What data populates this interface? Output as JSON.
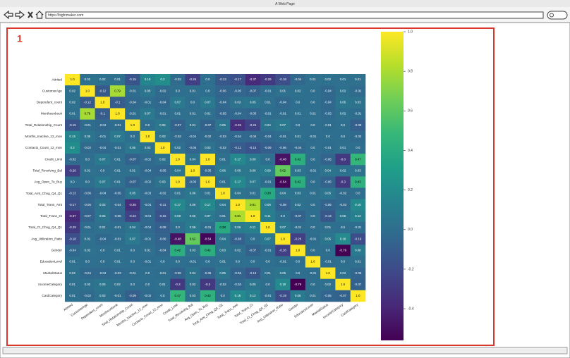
{
  "window": {
    "title": "A Web Page",
    "url": "https://bigfnmaker.com"
  },
  "annotation": "1",
  "chart_data": {
    "type": "heatmap",
    "colormap": "viridis",
    "categories": [
      "Attrited",
      "CustomerAge",
      "Dependent_count",
      "Monthsonbook",
      "Total_Relationship_Count",
      "Months_Inactive_12_mon",
      "Contacts_Count_12_mon",
      "Credit_Limit",
      "Total_Revolving_Bal",
      "Avg_Open_To_Buy",
      "Total_Amt_Chng_Q4_Q1",
      "Total_Trans_Amt",
      "Total_Trans_Ct",
      "Total_Ct_Chng_Q4_Q1",
      "Avg_Utilization_Ratio",
      "Gender",
      "EducationLevel",
      "MaritalStatus",
      "IncomeCategory",
      "CardCategory"
    ],
    "values": [
      [
        1,
        0.02,
        0.02,
        0.01,
        -0.15,
        0.15,
        0.2,
        -0.02,
        -0.26,
        0.0,
        -0.13,
        -0.17,
        -0.37,
        -0.29,
        -0.18,
        -0.04,
        0.01,
        0.02,
        0.01,
        0.01
      ],
      [
        0.02,
        1,
        -0.12,
        0.79,
        -0.01,
        0.05,
        -0.02,
        0.0,
        0.01,
        0.0,
        -0.06,
        -0.05,
        -0.07,
        -0.01,
        0.01,
        0.02,
        0.0,
        -0.04,
        0.02,
        -0.02
      ],
      [
        0.02,
        -0.12,
        1,
        -0.1,
        -0.04,
        -0.01,
        -0.04,
        0.07,
        0.0,
        0.07,
        -0.04,
        0.03,
        0.05,
        0.01,
        -0.04,
        0.0,
        0.0,
        -0.04,
        0.05,
        0.03
      ],
      [
        0.01,
        0.79,
        -0.1,
        1,
        -0.01,
        0.07,
        -0.01,
        0.01,
        0.01,
        0.01,
        -0.05,
        -0.04,
        -0.05,
        -0.01,
        -0.01,
        0.01,
        0.01,
        -0.03,
        0.02,
        -0.01
      ],
      [
        -0.15,
        -0.01,
        -0.04,
        -0.01,
        1,
        0.0,
        0.06,
        -0.07,
        0.01,
        -0.07,
        0.05,
        -0.35,
        -0.24,
        0.04,
        0.07,
        0.0,
        0.0,
        -0.01,
        0.0,
        -0.09
      ],
      [
        0.15,
        0.05,
        -0.01,
        0.07,
        0.0,
        1,
        0.03,
        -0.02,
        -0.04,
        -0.02,
        -0.03,
        -0.04,
        -0.04,
        -0.04,
        -0.01,
        0.01,
        -0.01,
        0.0,
        0.0,
        -0.02
      ],
      [
        0.2,
        -0.02,
        -0.04,
        -0.01,
        0.06,
        0.03,
        1,
        0.02,
        -0.05,
        0.03,
        -0.02,
        -0.11,
        -0.15,
        -0.09,
        -0.06,
        -0.04,
        0.0,
        -0.01,
        0.01,
        0.0
      ],
      [
        -0.02,
        0.0,
        0.07,
        0.01,
        -0.07,
        -0.02,
        0.02,
        1,
        0.04,
        1,
        0.01,
        0.17,
        0.08,
        0.0,
        -0.48,
        0.42,
        0.0,
        -0.06,
        -0.3,
        0.47
      ],
      [
        -0.26,
        0.01,
        0.0,
        0.01,
        0.01,
        -0.04,
        -0.05,
        0.04,
        1,
        -0.05,
        0.06,
        0.06,
        0.06,
        0.09,
        0.62,
        0.03,
        -0.01,
        0.04,
        0.02,
        0.03
      ],
      [
        0.0,
        0.0,
        0.07,
        0.01,
        -0.07,
        -0.02,
        0.03,
        1,
        -0.05,
        1,
        0.01,
        0.17,
        0.07,
        -0.01,
        -0.54,
        0.42,
        0.0,
        -0.06,
        -0.3,
        0.43
      ],
      [
        -0.13,
        -0.06,
        -0.04,
        -0.05,
        0.05,
        -0.03,
        -0.02,
        0.01,
        0.06,
        0.01,
        1,
        0.04,
        0.01,
        0.38,
        0.04,
        0.03,
        0.01,
        0.05,
        -0.02,
        0.0
      ],
      [
        -0.17,
        -0.05,
        0.03,
        -0.04,
        -0.35,
        -0.04,
        -0.11,
        0.17,
        0.06,
        0.17,
        0.04,
        1,
        0.81,
        0.09,
        -0.08,
        0.02,
        0.0,
        -0.06,
        -0.03,
        0.18
      ],
      [
        -0.37,
        -0.07,
        0.05,
        -0.05,
        -0.24,
        -0.04,
        -0.15,
        0.08,
        0.06,
        0.07,
        0.01,
        0.81,
        1,
        0.11,
        0.0,
        -0.07,
        0.0,
        -0.13,
        0.05,
        0.12
      ],
      [
        -0.29,
        -0.01,
        0.01,
        -0.01,
        0.04,
        -0.04,
        -0.09,
        0.0,
        0.09,
        -0.01,
        0.38,
        0.09,
        0.11,
        1,
        0.07,
        -0.01,
        0.0,
        0.01,
        0.0,
        -0.01
      ],
      [
        -0.18,
        0.01,
        -0.04,
        -0.01,
        0.07,
        -0.01,
        -0.06,
        -0.48,
        0.62,
        -0.54,
        0.04,
        -0.08,
        0.0,
        0.07,
        1,
        -0.26,
        -0.01,
        0.05,
        0.18,
        -0.19
      ],
      [
        -0.04,
        0.02,
        0.0,
        0.01,
        0.0,
        0.01,
        -0.04,
        0.42,
        0.03,
        0.42,
        0.03,
        0.02,
        -0.07,
        -0.01,
        -0.26,
        1,
        0.0,
        0.0,
        -0.79,
        0.08
      ],
      [
        0.01,
        0.0,
        0.0,
        0.01,
        0.0,
        -0.01,
        0.0,
        0.0,
        -0.01,
        0.0,
        0.01,
        0.0,
        0.0,
        0.0,
        -0.01,
        0.0,
        1,
        -0.01,
        0.0,
        0.01
      ],
      [
        0.02,
        -0.04,
        -0.04,
        -0.03,
        -0.01,
        0.0,
        -0.01,
        -0.06,
        0.04,
        -0.06,
        0.05,
        -0.06,
        -0.13,
        0.01,
        0.05,
        0.0,
        -0.01,
        1,
        0.02,
        -0.05
      ],
      [
        0.01,
        0.02,
        0.05,
        0.02,
        0.0,
        0.0,
        0.01,
        -0.3,
        0.02,
        -0.3,
        -0.02,
        -0.03,
        0.05,
        0.0,
        0.18,
        -0.79,
        0.0,
        0.02,
        1,
        -0.07
      ],
      [
        0.01,
        -0.02,
        0.03,
        -0.01,
        -0.09,
        -0.02,
        0.0,
        0.47,
        0.03,
        0.43,
        0.0,
        0.18,
        0.12,
        -0.01,
        -0.19,
        0.08,
        0.01,
        -0.05,
        -0.07,
        1
      ]
    ],
    "value_labels": [
      [
        "1.0",
        "0.02",
        "0.02",
        "0.01",
        "-0.15",
        "0.15",
        "0.2",
        "-0.02",
        "-0.26",
        "0.0",
        "-0.13",
        "-0.17",
        "-0.37",
        "-0.29",
        "-0.18",
        "-0.04",
        "0.01",
        "0.02",
        "0.01",
        "0.01"
      ],
      [
        "0.02",
        "1.0",
        "-0.12",
        "0.79",
        "-0.01",
        "0.05",
        "-0.02",
        "0.0",
        "0.01",
        "0.0",
        "-0.06",
        "-0.05",
        "-0.07",
        "-0.01",
        "0.01",
        "0.02",
        "0.0",
        "-0.04",
        "0.02",
        "-0.02"
      ],
      [
        "0.02",
        "-0.12",
        "1.0",
        "-0.1",
        "-0.04",
        "-0.01",
        "-0.04",
        "0.07",
        "0.0",
        "0.07",
        "-0.04",
        "0.03",
        "0.05",
        "0.01",
        "-0.04",
        "0.0",
        "0.0",
        "-0.04",
        "0.05",
        "0.03"
      ],
      [
        "0.01",
        "0.79",
        "-0.1",
        "1.0",
        "-0.01",
        "0.07",
        "-0.01",
        "0.01",
        "0.01",
        "0.01",
        "-0.05",
        "-0.04",
        "-0.05",
        "-0.01",
        "-0.01",
        "0.01",
        "0.01",
        "-0.03",
        "0.02",
        "-0.01"
      ],
      [
        "-0.15",
        "-0.01",
        "-0.04",
        "-0.01",
        "1.0",
        "0.0",
        "0.06",
        "-0.07",
        "0.01",
        "-0.07",
        "0.05",
        "-0.35",
        "-0.24",
        "0.04",
        "0.07",
        "0.0",
        "0.0",
        "-0.01",
        "0.0",
        "-0.09"
      ],
      [
        "0.15",
        "0.05",
        "-0.01",
        "0.07",
        "0.0",
        "1.0",
        "0.03",
        "-0.02",
        "-0.04",
        "-0.02",
        "-0.03",
        "-0.04",
        "-0.04",
        "-0.04",
        "-0.01",
        "0.01",
        "-0.01",
        "0.0",
        "0.0",
        "-0.02"
      ],
      [
        "0.2",
        "-0.02",
        "-0.04",
        "-0.01",
        "0.06",
        "0.03",
        "1.0",
        "0.02",
        "-0.05",
        "0.03",
        "-0.02",
        "-0.11",
        "-0.15",
        "-0.09",
        "-0.06",
        "-0.04",
        "0.0",
        "-0.01",
        "0.01",
        "0.0"
      ],
      [
        "-0.02",
        "0.0",
        "0.07",
        "0.01",
        "-0.07",
        "-0.02",
        "0.02",
        "1.0",
        "0.04",
        "1.0",
        "0.01",
        "0.17",
        "0.08",
        "0.0",
        "-0.48",
        "0.42",
        "0.0",
        "-0.06",
        "-0.3",
        "0.47"
      ],
      [
        "-0.26",
        "0.01",
        "0.0",
        "0.01",
        "0.01",
        "-0.04",
        "-0.05",
        "0.04",
        "1.0",
        "-0.05",
        "0.06",
        "0.06",
        "0.06",
        "0.09",
        "0.62",
        "0.03",
        "-0.01",
        "0.04",
        "0.02",
        "0.03"
      ],
      [
        "0.0",
        "0.0",
        "0.07",
        "0.01",
        "-0.07",
        "-0.02",
        "0.03",
        "1.0",
        "-0.05",
        "1.0",
        "0.01",
        "0.17",
        "0.07",
        "-0.01",
        "-0.54",
        "0.42",
        "0.0",
        "-0.06",
        "-0.3",
        "0.43"
      ],
      [
        "-0.13",
        "-0.06",
        "-0.04",
        "-0.05",
        "0.05",
        "-0.03",
        "-0.02",
        "0.01",
        "0.06",
        "0.01",
        "1.0",
        "0.04",
        "0.01",
        "0.38",
        "0.04",
        "0.03",
        "0.01",
        "0.05",
        "-0.02",
        "0.0"
      ],
      [
        "-0.17",
        "-0.05",
        "0.03",
        "-0.04",
        "-0.35",
        "-0.04",
        "-0.11",
        "0.17",
        "0.06",
        "0.17",
        "0.04",
        "1.0",
        "0.81",
        "0.09",
        "-0.08",
        "0.02",
        "0.0",
        "-0.06",
        "-0.03",
        "0.18"
      ],
      [
        "-0.37",
        "-0.07",
        "0.05",
        "-0.05",
        "-0.24",
        "-0.04",
        "-0.15",
        "0.08",
        "0.06",
        "0.07",
        "0.01",
        "0.81",
        "1.0",
        "0.11",
        "0.0",
        "-0.07",
        "0.0",
        "-0.13",
        "0.05",
        "0.12"
      ],
      [
        "-0.29",
        "-0.01",
        "0.01",
        "-0.01",
        "0.04",
        "-0.04",
        "-0.09",
        "0.0",
        "0.09",
        "-0.01",
        "0.38",
        "0.09",
        "0.11",
        "1.0",
        "0.07",
        "-0.01",
        "0.0",
        "0.01",
        "0.0",
        "-0.01"
      ],
      [
        "-0.18",
        "0.01",
        "-0.04",
        "-0.01",
        "0.07",
        "-0.01",
        "-0.06",
        "-0.48",
        "0.62",
        "-0.54",
        "0.04",
        "-0.08",
        "0.0",
        "0.07",
        "1.0",
        "-0.26",
        "-0.01",
        "0.05",
        "0.18",
        "-0.19"
      ],
      [
        "-0.04",
        "0.02",
        "0.0",
        "0.01",
        "0.0",
        "0.01",
        "-0.04",
        "0.42",
        "0.03",
        "0.42",
        "0.03",
        "0.02",
        "-0.07",
        "-0.01",
        "-0.26",
        "1.0",
        "0.0",
        "0.0",
        "-0.79",
        "0.08"
      ],
      [
        "0.01",
        "0.0",
        "0.0",
        "0.01",
        "0.0",
        "-0.01",
        "0.0",
        "0.0",
        "-0.01",
        "0.0",
        "0.01",
        "0.0",
        "0.0",
        "0.0",
        "-0.01",
        "0.0",
        "1.0",
        "-0.01",
        "0.0",
        "0.01"
      ],
      [
        "0.02",
        "-0.04",
        "-0.04",
        "-0.03",
        "-0.01",
        "0.0",
        "-0.01",
        "-0.06",
        "0.04",
        "-0.06",
        "0.05",
        "-0.06",
        "-0.13",
        "0.01",
        "0.05",
        "0.0",
        "-0.01",
        "1.0",
        "0.02",
        "-0.05"
      ],
      [
        "0.01",
        "0.02",
        "0.05",
        "0.02",
        "0.0",
        "0.0",
        "0.01",
        "-0.3",
        "0.02",
        "-0.3",
        "-0.02",
        "-0.03",
        "0.05",
        "0.0",
        "0.18",
        "-0.79",
        "0.0",
        "0.02",
        "1.0",
        "-0.07"
      ],
      [
        "0.01",
        "-0.02",
        "0.03",
        "-0.01",
        "-0.09",
        "-0.02",
        "0.0",
        "0.47",
        "0.03",
        "0.43",
        "0.0",
        "0.18",
        "0.12",
        "-0.01",
        "-0.19",
        "0.08",
        "0.01",
        "-0.05",
        "-0.07",
        "1.0"
      ]
    ],
    "clim": [
      -0.56,
      1
    ],
    "colorbar_ticks": [
      {
        "value": 1,
        "label": "1.0"
      },
      0.8,
      0.6,
      0.4,
      0.2,
      {
        "value": 0,
        "label": "0.0"
      },
      -0.2,
      -0.4
    ]
  }
}
